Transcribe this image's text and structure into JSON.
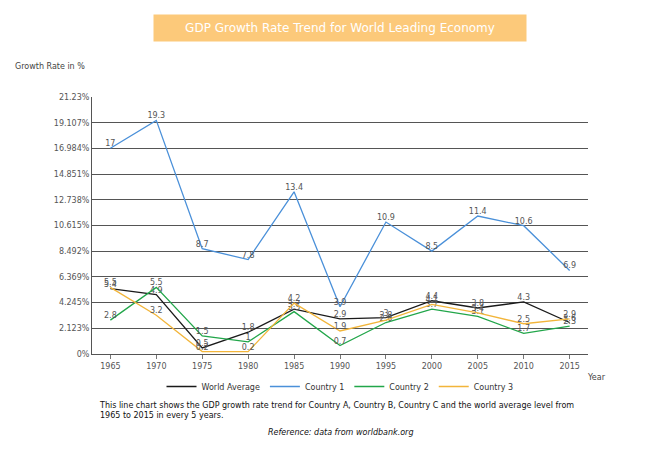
{
  "chart_data": {
    "type": "line",
    "title": "GDP Growth Rate Trend for World Leading Economy",
    "y_label": "Growth Rate in %",
    "x_label": "Year",
    "annotations": [
      "This line chart shows the GDP growth rate trend for Country A, Country B, Country C and the world average level from",
      "1965 to 2015 in every 5 years.",
      "Reference: data from worldbank.org"
    ],
    "x": [
      1965,
      1970,
      1975,
      1980,
      1985,
      1990,
      1995,
      2000,
      2005,
      2010,
      2015
    ],
    "xlim": [
      1963,
      2017
    ],
    "xticks": [
      1965,
      1970,
      1975,
      1980,
      1985,
      1990,
      1995,
      2000,
      2005,
      2010,
      2015
    ],
    "ylim": [
      0,
      21.23
    ],
    "yticks": [
      {
        "value": 0,
        "label": "0%"
      },
      {
        "value": 2.123,
        "label": "2.123%"
      },
      {
        "value": 4.245,
        "label": "4.245%"
      },
      {
        "value": 6.369,
        "label": "6.369%"
      },
      {
        "value": 8.492,
        "label": "8.492%"
      },
      {
        "value": 10.615,
        "label": "10.615%"
      },
      {
        "value": 12.738,
        "label": "12.738%"
      },
      {
        "value": 14.851,
        "label": "14.851%"
      },
      {
        "value": 16.984,
        "label": "16.984%"
      },
      {
        "value": 19.107,
        "label": "19.107%"
      },
      {
        "value": 21.23,
        "label": "21.23%"
      }
    ],
    "grid": true,
    "legend": "bottom",
    "data_labels": true,
    "series": [
      {
        "name": "World Average",
        "color": "#1a1a1a",
        "values": [
          5.4,
          4.9,
          0.5,
          1.8,
          3.7,
          2.9,
          3,
          4.4,
          3.8,
          4.3,
          2.6
        ]
      },
      {
        "name": "Country 1",
        "color": "#4a90d9",
        "values": [
          17,
          19.3,
          8.7,
          7.8,
          13.4,
          3.9,
          10.9,
          8.5,
          11.4,
          10.6,
          6.9
        ]
      },
      {
        "name": "Country 2",
        "color": "#22a64a",
        "values": [
          2.8,
          5.5,
          1.5,
          1,
          3.5,
          0.7,
          2.6,
          3.7,
          3.1,
          1.7,
          2.3
        ]
      },
      {
        "name": "Country 3",
        "color": "#f2b53a",
        "values": [
          5.5,
          3.2,
          0.2,
          0.2,
          4.2,
          1.9,
          2.8,
          4.1,
          3.4,
          2.5,
          2.9
        ]
      }
    ]
  }
}
